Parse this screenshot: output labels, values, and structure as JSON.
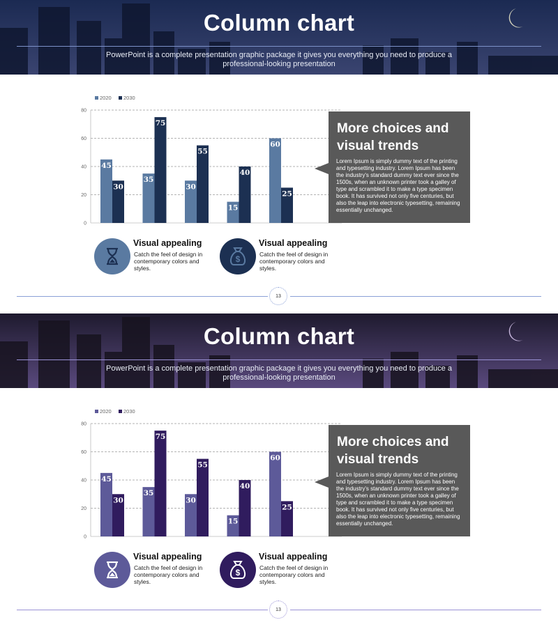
{
  "slides": [
    {
      "title": "Column chart",
      "subtitle": "PowerPoint is a complete presentation graphic package it gives you everything  you need to produce a professional-looking presentation",
      "colors": {
        "series_2020": "#5a7aa1",
        "series_2030": "#1c3052",
        "accent_line": "#8aa0d6",
        "banner_top": "#1b2a52",
        "banner_bottom": "#3a4470"
      },
      "callout": {
        "heading": "More choices and visual trends",
        "body": "Lorem Ipsum is simply dummy text of the printing and typesetting industry. Lorem Ipsum has been the industry's standard dummy text ever since the 1500s, when an unknown printer took a galley of type and scrambled it to make a type specimen book. It has survived  not only five centuries, but also the leap into electronic typesetting, remaining essentially unchanged."
      },
      "features": [
        {
          "icon": "hourglass-icon",
          "title": "Visual appealing",
          "text": "Catch the feel of design in contemporary colors and styles."
        },
        {
          "icon": "money-bag-icon",
          "title": "Visual appealing",
          "text": "Catch the feel of design in contemporary colors and styles."
        }
      ],
      "page_number": "13"
    },
    {
      "title": "Column chart",
      "subtitle": "PowerPoint is a complete presentation graphic package it gives you everything  you need to produce a professional-looking presentation",
      "colors": {
        "series_2020": "#5d5a99",
        "series_2030": "#301c5e",
        "accent_line": "#9a92d6",
        "banner_top": "#1e1a2e",
        "banner_bottom": "#5a4a7e"
      },
      "callout": {
        "heading": "More choices and visual trends",
        "body": "Lorem Ipsum is simply dummy text of the printing and typesetting industry. Lorem Ipsum has been the industry's standard dummy text ever since the 1500s, when an unknown printer took a galley of type and scrambled it to make a type specimen book. It has survived  not only five centuries, but also the leap into electronic typesetting, remaining essentially unchanged."
      },
      "features": [
        {
          "icon": "hourglass-icon",
          "title": "Visual appealing",
          "text": "Catch the feel of design in contemporary colors and styles."
        },
        {
          "icon": "money-bag-icon",
          "title": "Visual appealing",
          "text": "Catch the feel of design in contemporary colors and styles."
        }
      ],
      "page_number": "13"
    }
  ],
  "chart_data": [
    {
      "type": "bar",
      "categories": [
        "",
        "",
        "",
        "",
        ""
      ],
      "series": [
        {
          "name": "2020",
          "values": [
            45,
            35,
            30,
            15,
            60
          ]
        },
        {
          "name": "2030",
          "values": [
            30,
            75,
            55,
            40,
            25
          ]
        }
      ],
      "ylim": [
        0,
        80
      ],
      "yticks": [
        "0",
        "20",
        "40",
        "60",
        "80"
      ],
      "grid": true,
      "legend": "top-left",
      "data_labels": true
    },
    {
      "type": "bar",
      "categories": [
        "",
        "",
        "",
        "",
        ""
      ],
      "series": [
        {
          "name": "2020",
          "values": [
            45,
            35,
            30,
            15,
            60
          ]
        },
        {
          "name": "2030",
          "values": [
            30,
            75,
            55,
            40,
            25
          ]
        }
      ],
      "ylim": [
        0,
        80
      ],
      "yticks": [
        "0",
        "20",
        "40",
        "60",
        "80"
      ],
      "grid": true,
      "legend": "top-left",
      "data_labels": true
    }
  ]
}
